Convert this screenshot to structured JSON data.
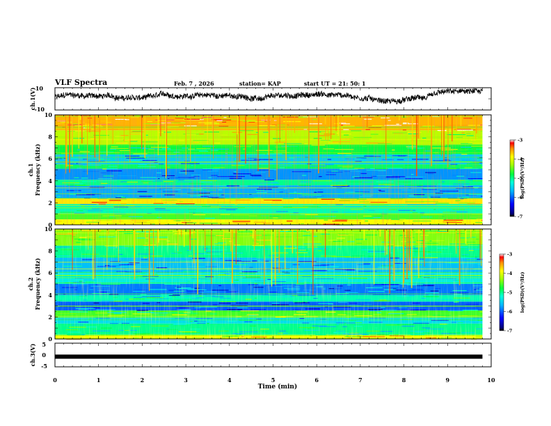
{
  "header": {
    "title": "VLF Spectra",
    "date": "Feb. 7 , 2026",
    "station": "station= KAP",
    "start": "start  UT =   21: 50: 1"
  },
  "chart_data": [
    {
      "type": "line",
      "name": "ch1-waveform",
      "ylabel": "ch.1(V)",
      "ylim": [
        -10,
        10
      ],
      "yticks": [
        "10",
        "-10"
      ],
      "xlim": [
        0,
        10
      ],
      "data_end_min": 9.8,
      "note": "noisy voltage trace, envelope roughly -5 to 8 V"
    },
    {
      "type": "heatmap",
      "name": "ch1-spectrogram",
      "ylabel_line1": "ch.1",
      "ylabel_line2": "Frequency (kHz)",
      "ylim": [
        0,
        10
      ],
      "yticks": [
        "0",
        "2",
        "4",
        "6",
        "8",
        "10"
      ],
      "xlim": [
        0,
        10
      ],
      "data_end_min": 9.8,
      "colorbar": {
        "label": "log(PSD)(V²/Hz)",
        "range": [
          -7,
          -3
        ],
        "ticks": [
          "-3",
          "-4",
          "-5",
          "-6",
          "-7"
        ]
      },
      "bands": [
        {
          "f0": 0.0,
          "f1": 0.5,
          "level": -3.9
        },
        {
          "f0": 0.5,
          "f1": 1.0,
          "level": -4.6
        },
        {
          "f0": 1.0,
          "f1": 1.9,
          "level": -5.1
        },
        {
          "f0": 1.9,
          "f1": 2.4,
          "level": -3.8
        },
        {
          "f0": 2.4,
          "f1": 3.6,
          "level": -5.7
        },
        {
          "f0": 3.6,
          "f1": 4.1,
          "level": -5.0
        },
        {
          "f0": 4.1,
          "f1": 5.1,
          "level": -5.8
        },
        {
          "f0": 5.1,
          "f1": 5.5,
          "level": -4.9
        },
        {
          "f0": 5.5,
          "f1": 6.4,
          "level": -5.5
        },
        {
          "f0": 6.4,
          "f1": 7.3,
          "level": -4.8
        },
        {
          "f0": 7.3,
          "f1": 8.6,
          "level": -4.2
        },
        {
          "f0": 8.6,
          "f1": 10.0,
          "level": -3.6
        }
      ]
    },
    {
      "type": "heatmap",
      "name": "ch2-spectrogram",
      "ylabel_line1": "ch.2",
      "ylabel_line2": "Frequency (kHz)",
      "ylim": [
        0,
        10
      ],
      "yticks": [
        "0",
        "2",
        "4",
        "6",
        "8",
        "10"
      ],
      "xlim": [
        0,
        10
      ],
      "data_end_min": 9.8,
      "colorbar": {
        "label": "log(PSD)(V²/Hz)",
        "range": [
          -7,
          -3
        ],
        "ticks": [
          "-3",
          "-4",
          "-5",
          "-6",
          "-7"
        ]
      },
      "bands": [
        {
          "f0": 0.0,
          "f1": 0.4,
          "level": -3.9
        },
        {
          "f0": 0.4,
          "f1": 1.4,
          "level": -5.0
        },
        {
          "f0": 1.4,
          "f1": 2.0,
          "level": -5.4
        },
        {
          "f0": 2.0,
          "f1": 2.6,
          "level": -4.6
        },
        {
          "f0": 2.6,
          "f1": 3.4,
          "level": -6.0
        },
        {
          "f0": 3.4,
          "f1": 4.0,
          "level": -5.1
        },
        {
          "f0": 4.0,
          "f1": 5.0,
          "level": -5.9
        },
        {
          "f0": 5.0,
          "f1": 6.0,
          "level": -5.3
        },
        {
          "f0": 6.0,
          "f1": 7.4,
          "level": -5.6
        },
        {
          "f0": 7.4,
          "f1": 8.5,
          "level": -5.0
        },
        {
          "f0": 8.5,
          "f1": 10.0,
          "level": -4.4
        }
      ]
    },
    {
      "type": "line",
      "name": "ch3-waveform",
      "ylabel": "ch.3(V)",
      "ylim": [
        -5,
        5
      ],
      "yticks": [
        "5",
        "0",
        "-5"
      ],
      "xlim": [
        0,
        10
      ],
      "data_end_min": 9.8,
      "constant_value": -0.7,
      "xlabel": "Time  (min)",
      "xticks": [
        "0",
        "1",
        "2",
        "3",
        "4",
        "5",
        "6",
        "7",
        "8",
        "9",
        "10"
      ]
    }
  ]
}
